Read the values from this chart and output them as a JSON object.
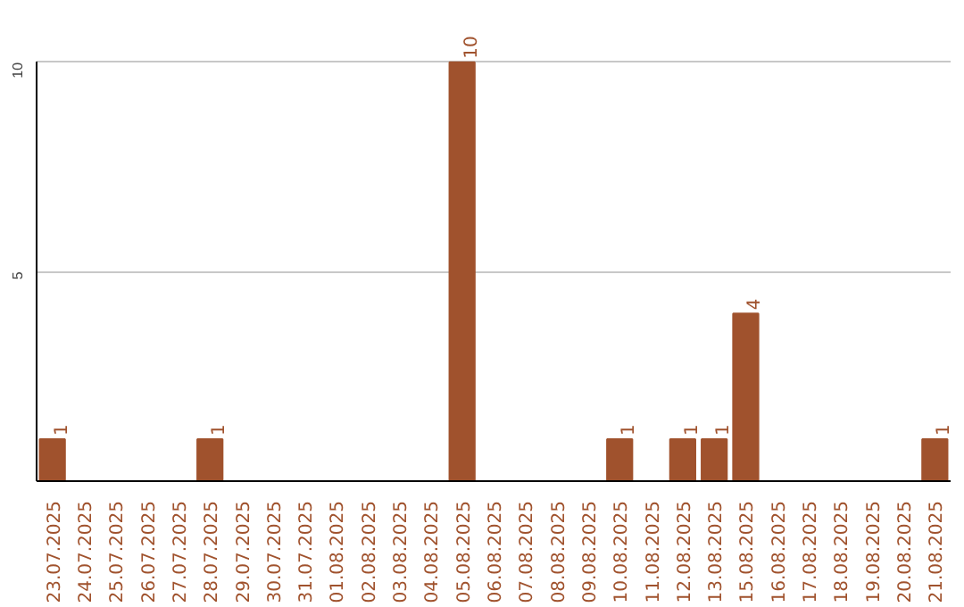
{
  "chart_data": {
    "type": "bar",
    "categories": [
      "23.07.2025",
      "24.07.2025",
      "25.07.2025",
      "26.07.2025",
      "27.07.2025",
      "28.07.2025",
      "29.07.2025",
      "30.07.2025",
      "31.07.2025",
      "01.08.2025",
      "02.08.2025",
      "03.08.2025",
      "04.08.2025",
      "05.08.2025",
      "06.08.2025",
      "07.08.2025",
      "08.08.2025",
      "09.08.2025",
      "10.08.2025",
      "11.08.2025",
      "12.08.2025",
      "13.08.2025",
      "15.08.2025",
      "16.08.2025",
      "17.08.2025",
      "18.08.2025",
      "19.08.2025",
      "20.08.2025",
      "21.08.2025"
    ],
    "values": [
      1,
      0,
      0,
      0,
      0,
      1,
      0,
      0,
      0,
      0,
      0,
      0,
      0,
      10,
      0,
      0,
      0,
      0,
      1,
      0,
      1,
      1,
      4,
      0,
      0,
      0,
      0,
      0,
      1
    ],
    "value_labels": [
      "1",
      null,
      null,
      null,
      null,
      "1",
      null,
      null,
      null,
      null,
      null,
      null,
      null,
      "10",
      null,
      null,
      null,
      null,
      "1",
      null,
      "1",
      "1",
      "4",
      null,
      null,
      null,
      null,
      null,
      "1"
    ],
    "color": "#a0522d",
    "ylim": [
      0,
      10
    ],
    "yticks": [
      5,
      10
    ],
    "grid": "y"
  }
}
